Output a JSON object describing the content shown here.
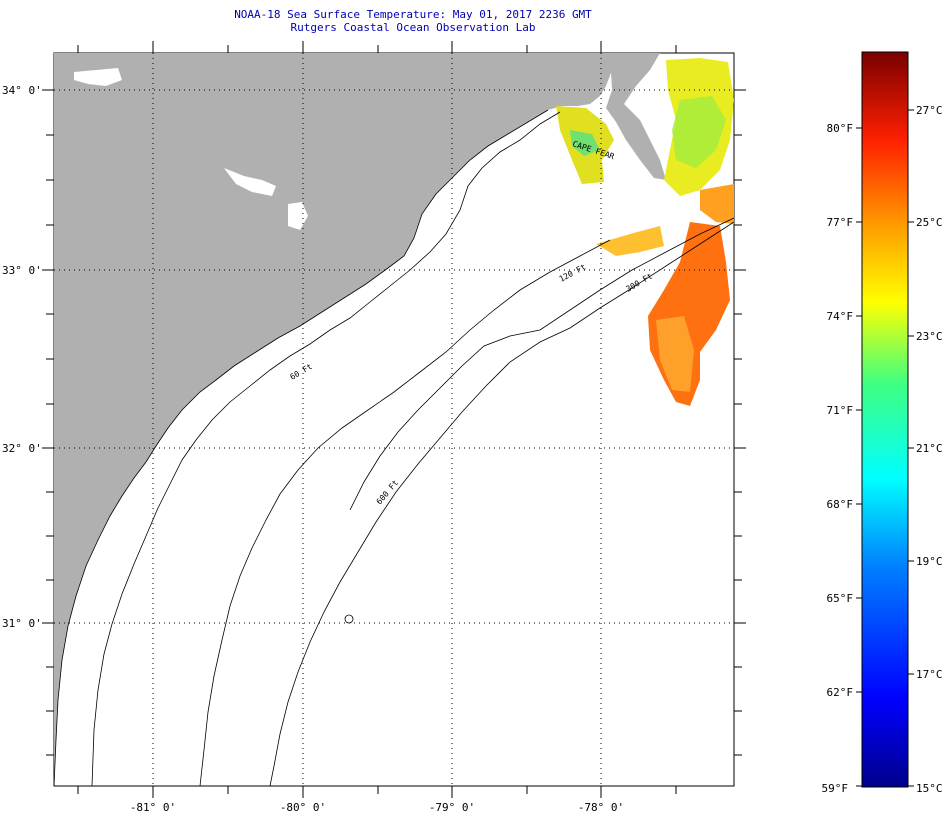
{
  "title_line1": "NOAA-18 Sea Surface Temperature:  May 01, 2017 2236 GMT",
  "title_line2": "Rutgers Coastal Ocean Observation Lab",
  "map": {
    "lat_labels": [
      "34° 0'",
      "33° 0'",
      "32° 0'",
      "31° 0'"
    ],
    "lon_labels": [
      "-81° 0'",
      "-80° 0'",
      "-79° 0'",
      "-78° 0'"
    ],
    "contour_labels": [
      "120 Ft",
      "600 Ft",
      "300 Ft",
      "60 Ft",
      "CAPE FEAR"
    ]
  },
  "colorbar": {
    "fahrenheit": [
      "80°F",
      "77°F",
      "74°F",
      "71°F",
      "68°F",
      "65°F",
      "62°F",
      "59°F"
    ],
    "celsius": [
      "27°C",
      "25°C",
      "23°C",
      "21°C",
      "19°C",
      "17°C",
      "15°C"
    ]
  },
  "colors": {
    "land": "#b0b0b0",
    "title": "#0000b0"
  }
}
